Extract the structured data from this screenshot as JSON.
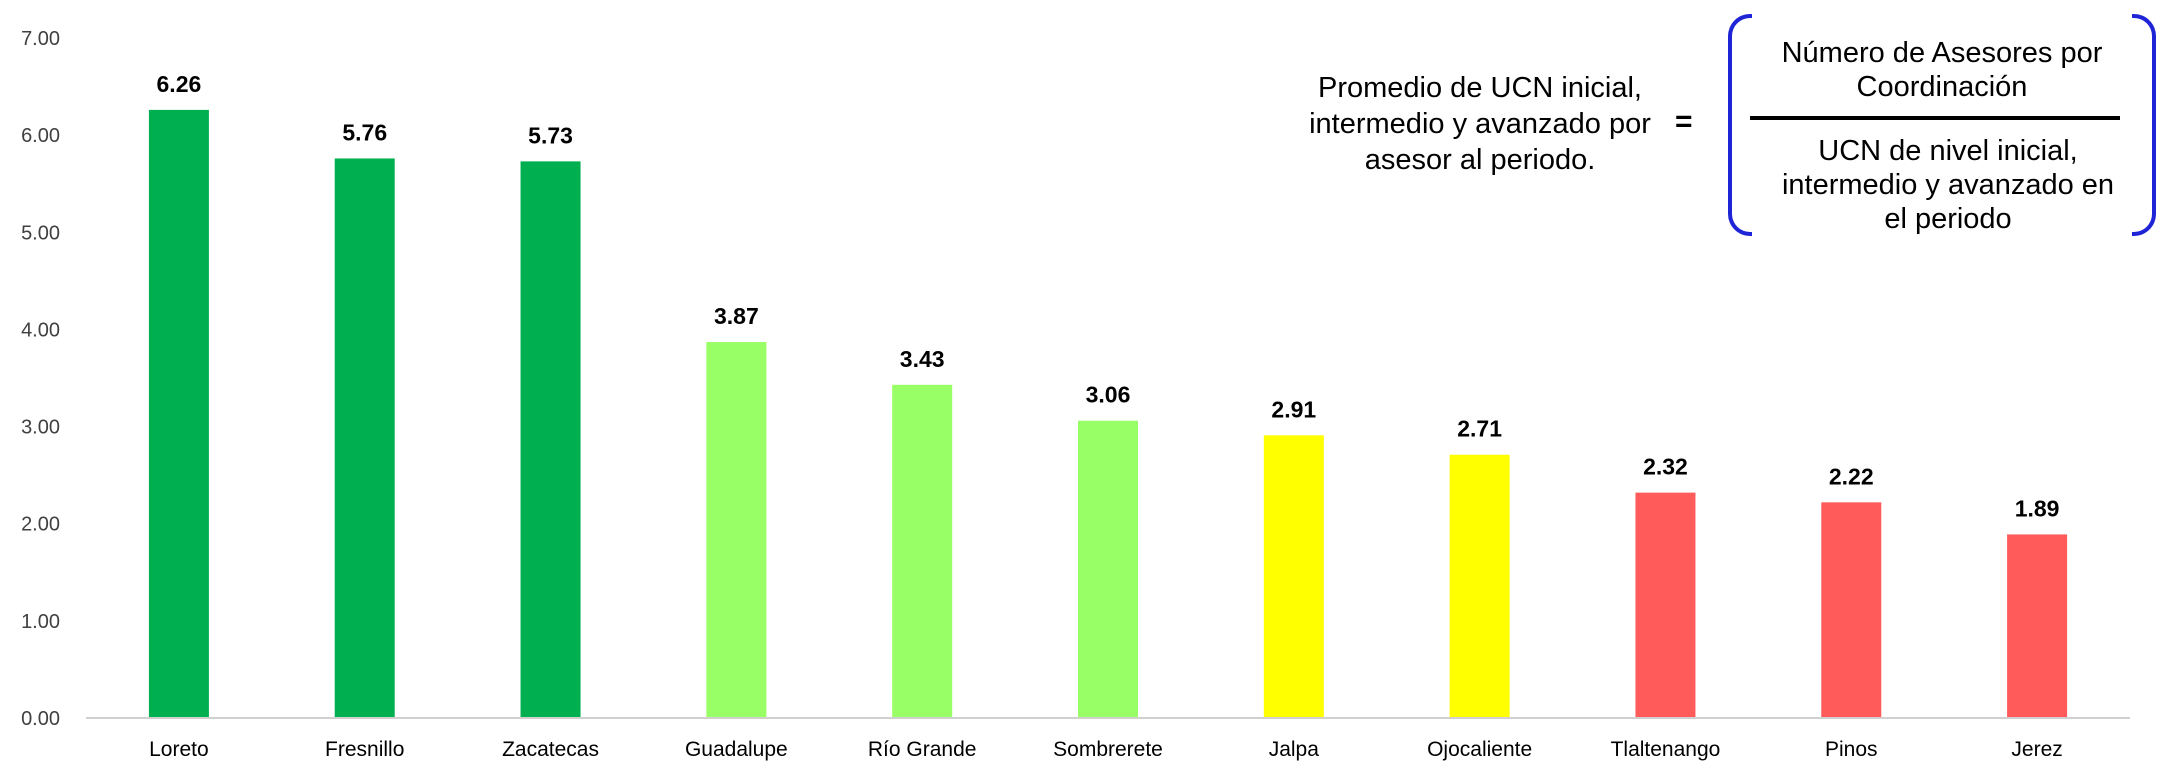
{
  "chart_data": {
    "type": "bar",
    "categories": [
      "Loreto",
      "Fresnillo",
      "Zacatecas",
      "Guadalupe",
      "Río Grande",
      "Sombrerete",
      "Jalpa",
      "Ojocaliente",
      "Tlaltenango",
      "Pinos",
      "Jerez"
    ],
    "values": [
      6.26,
      5.76,
      5.73,
      3.87,
      3.43,
      3.06,
      2.91,
      2.71,
      2.32,
      2.22,
      1.89
    ],
    "value_labels": [
      "6.26",
      "5.76",
      "5.73",
      "3.87",
      "3.43",
      "3.06",
      "2.91",
      "2.71",
      "2.32",
      "2.22",
      "1.89"
    ],
    "bar_colors": [
      "#00b050",
      "#00b050",
      "#00b050",
      "#99ff66",
      "#99ff66",
      "#99ff66",
      "#ffff00",
      "#ffff00",
      "#ff5b5b",
      "#ff5b5b",
      "#ff5b5b"
    ],
    "ylim": [
      0,
      7
    ],
    "yticks": [
      "0.00",
      "1.00",
      "2.00",
      "3.00",
      "4.00",
      "5.00",
      "6.00",
      "7.00"
    ],
    "grid": false,
    "title": "",
    "xlabel": "",
    "ylabel": ""
  },
  "formula": {
    "left_text": [
      "Promedio de UCN inicial,",
      "intermedio y avanzado por",
      "asesor al periodo."
    ],
    "equals": "=",
    "numerator": [
      "Número de Asesores por",
      "Coordinación"
    ],
    "denominator": [
      "UCN de nivel inicial,",
      "intermedio y avanzado en",
      "el periodo"
    ],
    "bracket_color": "#1f24d6"
  }
}
